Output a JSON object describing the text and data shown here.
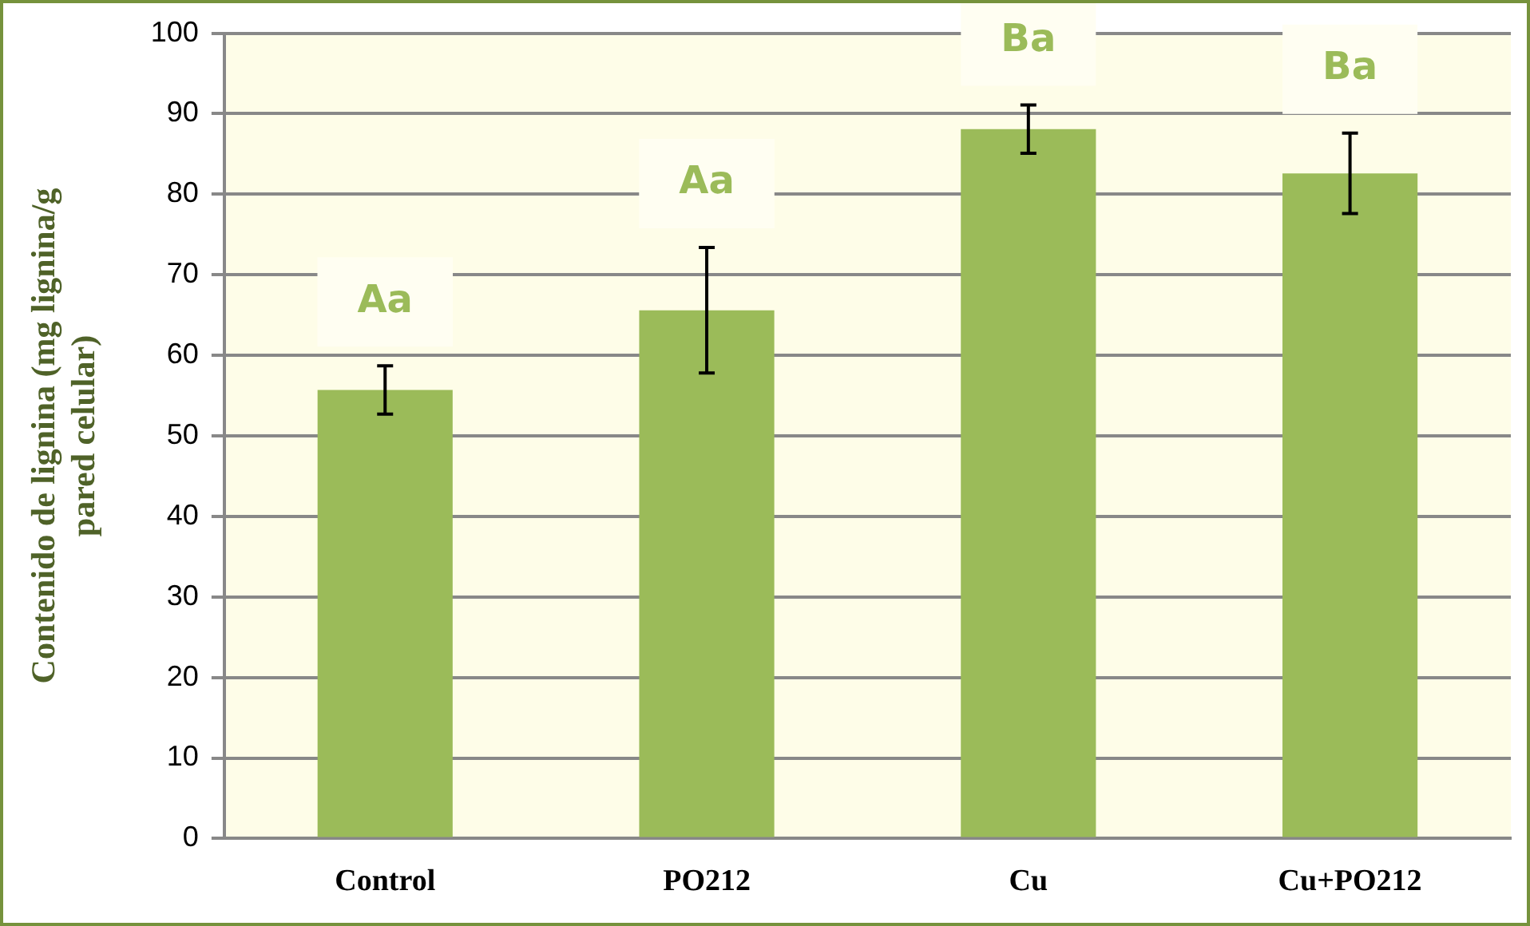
{
  "chart_data": {
    "type": "bar",
    "ylabel": "Contenido de lignina (mg lignina/g\npared celular)",
    "categories": [
      "Control",
      "PO212",
      "Cu",
      "Cu+PO212"
    ],
    "values": [
      55.7,
      65.6,
      88.1,
      82.6
    ],
    "errors": [
      3,
      7.8,
      3,
      5
    ],
    "color": "#9bbb59",
    "ylim": [
      0,
      100
    ],
    "yticks": [
      0,
      10,
      20,
      30,
      40,
      50,
      60,
      70,
      80,
      90,
      100
    ],
    "grid": "y",
    "legend": false,
    "annotations": [
      "Aa",
      "Aa",
      "Ba",
      "Ba"
    ]
  }
}
